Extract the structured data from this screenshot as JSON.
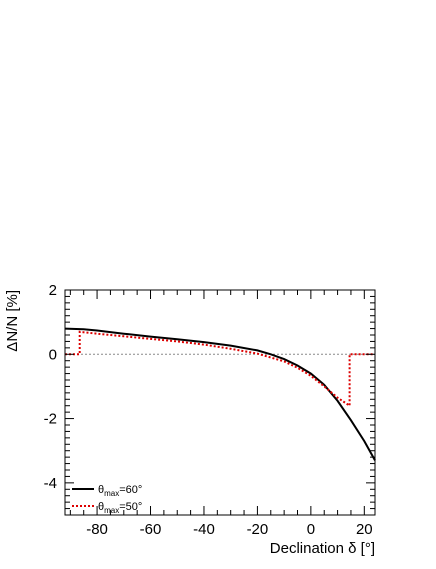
{
  "chart_data": {
    "type": "line",
    "xlabel": "Declination δ [°]",
    "ylabel": "ΔN/N [%]",
    "xlim": [
      -92,
      24
    ],
    "ylim": [
      -5,
      2
    ],
    "x_ticks": [
      -80,
      -60,
      -40,
      -20,
      0,
      20
    ],
    "x_tick_labels": [
      "-80",
      "-60",
      "-40",
      "-20",
      "0",
      "20"
    ],
    "y_ticks": [
      -4,
      -2,
      0,
      2
    ],
    "y_tick_labels": [
      "-4",
      "-2",
      "0",
      "2"
    ],
    "reference_line": {
      "y": 0,
      "style": "dotted",
      "color": "#888888"
    },
    "legend_placement": "bottom-left",
    "series": [
      {
        "name": "θmax=60°",
        "legend": {
          "symbol": "θ",
          "sub": "max",
          "suffix": "=60°"
        },
        "color": "#000000",
        "style": "solid",
        "x": [
          -92,
          -85,
          -80,
          -70,
          -60,
          -50,
          -40,
          -30,
          -20,
          -15,
          -10,
          -5,
          0,
          5,
          10,
          15,
          20,
          24
        ],
        "y": [
          0.8,
          0.78,
          0.74,
          0.64,
          0.55,
          0.47,
          0.38,
          0.27,
          0.12,
          0.0,
          -0.15,
          -0.35,
          -0.6,
          -0.95,
          -1.45,
          -2.05,
          -2.7,
          -3.3
        ]
      },
      {
        "name": "θmax=50°",
        "legend": {
          "symbol": "θ",
          "sub": "max",
          "suffix": "=50°"
        },
        "color": "#dd0000",
        "style": "dotted",
        "x": [
          -92,
          -86.5,
          -86.5,
          -80,
          -70,
          -60,
          -50,
          -40,
          -30,
          -20,
          -15,
          -10,
          -5,
          0,
          5,
          10,
          14.5,
          14.5,
          24
        ],
        "y": [
          0.0,
          0.0,
          0.7,
          0.64,
          0.56,
          0.48,
          0.4,
          0.3,
          0.17,
          0.02,
          -0.1,
          -0.22,
          -0.42,
          -0.67,
          -1.0,
          -1.35,
          -1.6,
          0.0,
          0.0
        ]
      }
    ]
  }
}
